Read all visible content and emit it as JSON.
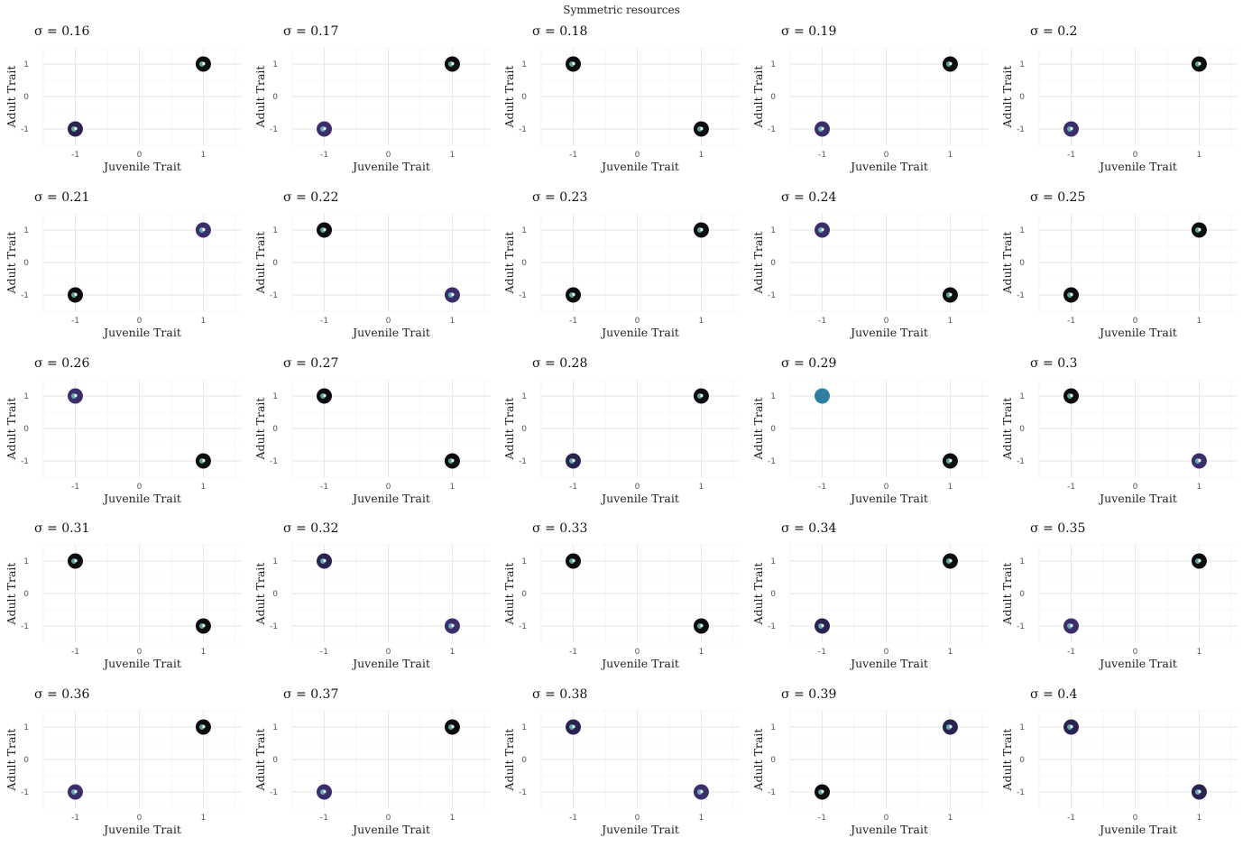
{
  "figure": {
    "title": "Symmetric resources"
  },
  "colors": {
    "dark": "#0d0d0f",
    "navy": "#2a2350",
    "purple": "#3b2e6b",
    "teal": "#2f7fa0",
    "cyan": "#6fd6c9",
    "white": "#ffffff"
  },
  "chart_data": [
    {
      "type": "scatter",
      "title": "σ = 0.16",
      "xlabel": "Juvenile Trait",
      "ylabel": "Adult Trait",
      "xlim": [
        -1.5,
        1.6
      ],
      "ylim": [
        -1.5,
        1.5
      ],
      "xticks": [
        -1,
        0,
        1
      ],
      "yticks": [
        -1,
        0,
        1
      ],
      "points": [
        {
          "x": 1,
          "y": 1,
          "color": "dark"
        },
        {
          "x": -1,
          "y": -1,
          "color": "navy"
        }
      ]
    },
    {
      "type": "scatter",
      "title": "σ = 0.17",
      "xlabel": "Juvenile Trait",
      "ylabel": "Adult Trait",
      "xlim": [
        -1.5,
        1.6
      ],
      "ylim": [
        -1.5,
        1.5
      ],
      "xticks": [
        -1,
        0,
        1
      ],
      "yticks": [
        -1,
        0,
        1
      ],
      "points": [
        {
          "x": 1,
          "y": 1,
          "color": "dark"
        },
        {
          "x": -1,
          "y": -1,
          "color": "purple"
        }
      ]
    },
    {
      "type": "scatter",
      "title": "σ = 0.18",
      "xlabel": "Juvenile Trait",
      "ylabel": "Adult Trait",
      "xlim": [
        -1.5,
        1.6
      ],
      "ylim": [
        -1.5,
        1.5
      ],
      "xticks": [
        -1,
        0,
        1
      ],
      "yticks": [
        -1,
        0,
        1
      ],
      "points": [
        {
          "x": -1,
          "y": 1,
          "color": "dark"
        },
        {
          "x": 1,
          "y": -1,
          "color": "dark"
        }
      ]
    },
    {
      "type": "scatter",
      "title": "σ = 0.19",
      "xlabel": "Juvenile Trait",
      "ylabel": "Adult Trait",
      "xlim": [
        -1.5,
        1.6
      ],
      "ylim": [
        -1.5,
        1.5
      ],
      "xticks": [
        -1,
        0,
        1
      ],
      "yticks": [
        -1,
        0,
        1
      ],
      "points": [
        {
          "x": 1,
          "y": 1,
          "color": "dark"
        },
        {
          "x": -1,
          "y": -1,
          "color": "purple"
        }
      ]
    },
    {
      "type": "scatter",
      "title": "σ = 0.2",
      "xlabel": "Juvenile Trait",
      "ylabel": "Adult Trait",
      "xlim": [
        -1.5,
        1.6
      ],
      "ylim": [
        -1.5,
        1.5
      ],
      "xticks": [
        -1,
        0,
        1
      ],
      "yticks": [
        -1,
        0,
        1
      ],
      "points": [
        {
          "x": 1,
          "y": 1,
          "color": "dark"
        },
        {
          "x": -1,
          "y": -1,
          "color": "purple"
        }
      ]
    },
    {
      "type": "scatter",
      "title": "σ = 0.21",
      "xlabel": "Juvenile Trait",
      "ylabel": "Adult Trait",
      "xlim": [
        -1.5,
        1.6
      ],
      "ylim": [
        -1.5,
        1.5
      ],
      "xticks": [
        -1,
        0,
        1
      ],
      "yticks": [
        -1,
        0,
        1
      ],
      "points": [
        {
          "x": 1,
          "y": 1,
          "color": "purple"
        },
        {
          "x": -1,
          "y": -1,
          "color": "dark"
        }
      ]
    },
    {
      "type": "scatter",
      "title": "σ = 0.22",
      "xlabel": "Juvenile Trait",
      "ylabel": "Adult Trait",
      "xlim": [
        -1.5,
        1.6
      ],
      "ylim": [
        -1.5,
        1.5
      ],
      "xticks": [
        -1,
        0,
        1
      ],
      "yticks": [
        -1,
        0,
        1
      ],
      "points": [
        {
          "x": -1,
          "y": 1,
          "color": "dark"
        },
        {
          "x": 1,
          "y": -1,
          "color": "purple"
        }
      ]
    },
    {
      "type": "scatter",
      "title": "σ = 0.23",
      "xlabel": "Juvenile Trait",
      "ylabel": "Adult Trait",
      "xlim": [
        -1.5,
        1.6
      ],
      "ylim": [
        -1.5,
        1.5
      ],
      "xticks": [
        -1,
        0,
        1
      ],
      "yticks": [
        -1,
        0,
        1
      ],
      "points": [
        {
          "x": 1,
          "y": 1,
          "color": "dark"
        },
        {
          "x": -1,
          "y": -1,
          "color": "dark"
        }
      ]
    },
    {
      "type": "scatter",
      "title": "σ = 0.24",
      "xlabel": "Juvenile Trait",
      "ylabel": "Adult Trait",
      "xlim": [
        -1.5,
        1.6
      ],
      "ylim": [
        -1.5,
        1.5
      ],
      "xticks": [
        -1,
        0,
        1
      ],
      "yticks": [
        -1,
        0,
        1
      ],
      "points": [
        {
          "x": -1,
          "y": 1,
          "color": "purple"
        },
        {
          "x": 1,
          "y": -1,
          "color": "dark"
        }
      ]
    },
    {
      "type": "scatter",
      "title": "σ = 0.25",
      "xlabel": "Juvenile Trait",
      "ylabel": "Adult Trait",
      "xlim": [
        -1.5,
        1.6
      ],
      "ylim": [
        -1.5,
        1.5
      ],
      "xticks": [
        -1,
        0,
        1
      ],
      "yticks": [
        -1,
        0,
        1
      ],
      "points": [
        {
          "x": 1,
          "y": 1,
          "color": "dark"
        },
        {
          "x": -1,
          "y": -1,
          "color": "dark"
        }
      ]
    },
    {
      "type": "scatter",
      "title": "σ = 0.26",
      "xlabel": "Juvenile Trait",
      "ylabel": "Adult Trait",
      "xlim": [
        -1.5,
        1.6
      ],
      "ylim": [
        -1.5,
        1.5
      ],
      "xticks": [
        -1,
        0,
        1
      ],
      "yticks": [
        -1,
        0,
        1
      ],
      "points": [
        {
          "x": -1,
          "y": 1,
          "color": "purple"
        },
        {
          "x": 1,
          "y": -1,
          "color": "dark"
        }
      ]
    },
    {
      "type": "scatter",
      "title": "σ = 0.27",
      "xlabel": "Juvenile Trait",
      "ylabel": "Adult Trait",
      "xlim": [
        -1.5,
        1.6
      ],
      "ylim": [
        -1.5,
        1.5
      ],
      "xticks": [
        -1,
        0,
        1
      ],
      "yticks": [
        -1,
        0,
        1
      ],
      "points": [
        {
          "x": -1,
          "y": 1,
          "color": "dark"
        },
        {
          "x": 1,
          "y": -1,
          "color": "dark"
        }
      ]
    },
    {
      "type": "scatter",
      "title": "σ = 0.28",
      "xlabel": "Juvenile Trait",
      "ylabel": "Adult Trait",
      "xlim": [
        -1.5,
        1.6
      ],
      "ylim": [
        -1.5,
        1.5
      ],
      "xticks": [
        -1,
        0,
        1
      ],
      "yticks": [
        -1,
        0,
        1
      ],
      "points": [
        {
          "x": 1,
          "y": 1,
          "color": "dark"
        },
        {
          "x": -1,
          "y": -1,
          "color": "navy"
        }
      ]
    },
    {
      "type": "scatter",
      "title": "σ = 0.29",
      "xlabel": "Juvenile Trait",
      "ylabel": "Adult Trait",
      "xlim": [
        -1.5,
        1.6
      ],
      "ylim": [
        -1.5,
        1.5
      ],
      "xticks": [
        -1,
        0,
        1
      ],
      "yticks": [
        -1,
        0,
        1
      ],
      "points": [
        {
          "x": -1,
          "y": 1,
          "color": "teal"
        },
        {
          "x": 1,
          "y": -1,
          "color": "dark"
        }
      ]
    },
    {
      "type": "scatter",
      "title": "σ = 0.3",
      "xlabel": "Juvenile Trait",
      "ylabel": "Adult Trait",
      "xlim": [
        -1.5,
        1.6
      ],
      "ylim": [
        -1.5,
        1.5
      ],
      "xticks": [
        -1,
        0,
        1
      ],
      "yticks": [
        -1,
        0,
        1
      ],
      "points": [
        {
          "x": -1,
          "y": 1,
          "color": "dark"
        },
        {
          "x": 1,
          "y": -1,
          "color": "purple"
        }
      ]
    },
    {
      "type": "scatter",
      "title": "σ = 0.31",
      "xlabel": "Juvenile Trait",
      "ylabel": "Adult Trait",
      "xlim": [
        -1.5,
        1.6
      ],
      "ylim": [
        -1.5,
        1.5
      ],
      "xticks": [
        -1,
        0,
        1
      ],
      "yticks": [
        -1,
        0,
        1
      ],
      "points": [
        {
          "x": -1,
          "y": 1,
          "color": "dark"
        },
        {
          "x": 1,
          "y": -1,
          "color": "dark"
        }
      ]
    },
    {
      "type": "scatter",
      "title": "σ = 0.32",
      "xlabel": "Juvenile Trait",
      "ylabel": "Adult Trait",
      "xlim": [
        -1.5,
        1.6
      ],
      "ylim": [
        -1.5,
        1.5
      ],
      "xticks": [
        -1,
        0,
        1
      ],
      "yticks": [
        -1,
        0,
        1
      ],
      "points": [
        {
          "x": -1,
          "y": 1,
          "color": "navy"
        },
        {
          "x": 1,
          "y": -1,
          "color": "purple"
        }
      ]
    },
    {
      "type": "scatter",
      "title": "σ = 0.33",
      "xlabel": "Juvenile Trait",
      "ylabel": "Adult Trait",
      "xlim": [
        -1.5,
        1.6
      ],
      "ylim": [
        -1.5,
        1.5
      ],
      "xticks": [
        -1,
        0,
        1
      ],
      "yticks": [
        -1,
        0,
        1
      ],
      "points": [
        {
          "x": -1,
          "y": 1,
          "color": "dark"
        },
        {
          "x": 1,
          "y": -1,
          "color": "dark"
        }
      ]
    },
    {
      "type": "scatter",
      "title": "σ = 0.34",
      "xlabel": "Juvenile Trait",
      "ylabel": "Adult Trait",
      "xlim": [
        -1.5,
        1.6
      ],
      "ylim": [
        -1.5,
        1.5
      ],
      "xticks": [
        -1,
        0,
        1
      ],
      "yticks": [
        -1,
        0,
        1
      ],
      "points": [
        {
          "x": 1,
          "y": 1,
          "color": "dark"
        },
        {
          "x": -1,
          "y": -1,
          "color": "navy"
        }
      ]
    },
    {
      "type": "scatter",
      "title": "σ = 0.35",
      "xlabel": "Juvenile Trait",
      "ylabel": "Adult Trait",
      "xlim": [
        -1.5,
        1.6
      ],
      "ylim": [
        -1.5,
        1.5
      ],
      "xticks": [
        -1,
        0,
        1
      ],
      "yticks": [
        -1,
        0,
        1
      ],
      "points": [
        {
          "x": 1,
          "y": 1,
          "color": "dark"
        },
        {
          "x": -1,
          "y": -1,
          "color": "purple"
        }
      ]
    },
    {
      "type": "scatter",
      "title": "σ = 0.36",
      "xlabel": "Juvenile Trait",
      "ylabel": "Adult Trait",
      "xlim": [
        -1.5,
        1.6
      ],
      "ylim": [
        -1.5,
        1.5
      ],
      "xticks": [
        -1,
        0,
        1
      ],
      "yticks": [
        -1,
        0,
        1
      ],
      "points": [
        {
          "x": 1,
          "y": 1,
          "color": "dark"
        },
        {
          "x": -1,
          "y": -1,
          "color": "purple"
        }
      ]
    },
    {
      "type": "scatter",
      "title": "σ = 0.37",
      "xlabel": "Juvenile Trait",
      "ylabel": "Adult Trait",
      "xlim": [
        -1.5,
        1.6
      ],
      "ylim": [
        -1.5,
        1.5
      ],
      "xticks": [
        -1,
        0,
        1
      ],
      "yticks": [
        -1,
        0,
        1
      ],
      "points": [
        {
          "x": 1,
          "y": 1,
          "color": "dark"
        },
        {
          "x": -1,
          "y": -1,
          "color": "purple"
        }
      ]
    },
    {
      "type": "scatter",
      "title": "σ = 0.38",
      "xlabel": "Juvenile Trait",
      "ylabel": "Adult Trait",
      "xlim": [
        -1.5,
        1.6
      ],
      "ylim": [
        -1.5,
        1.5
      ],
      "xticks": [
        -1,
        0,
        1
      ],
      "yticks": [
        -1,
        0,
        1
      ],
      "points": [
        {
          "x": -1,
          "y": 1,
          "color": "navy"
        },
        {
          "x": 1,
          "y": -1,
          "color": "purple"
        }
      ]
    },
    {
      "type": "scatter",
      "title": "σ = 0.39",
      "xlabel": "Juvenile Trait",
      "ylabel": "Adult Trait",
      "xlim": [
        -1.5,
        1.6
      ],
      "ylim": [
        -1.5,
        1.5
      ],
      "xticks": [
        -1,
        0,
        1
      ],
      "yticks": [
        -1,
        0,
        1
      ],
      "points": [
        {
          "x": 1,
          "y": 1,
          "color": "navy"
        },
        {
          "x": -1,
          "y": -1,
          "color": "dark"
        }
      ]
    },
    {
      "type": "scatter",
      "title": "σ = 0.4",
      "xlabel": "Juvenile Trait",
      "ylabel": "Adult Trait",
      "xlim": [
        -1.5,
        1.6
      ],
      "ylim": [
        -1.5,
        1.5
      ],
      "xticks": [
        -1,
        0,
        1
      ],
      "yticks": [
        -1,
        0,
        1
      ],
      "points": [
        {
          "x": -1,
          "y": 1,
          "color": "navy"
        },
        {
          "x": 1,
          "y": -1,
          "color": "navy"
        }
      ]
    }
  ]
}
